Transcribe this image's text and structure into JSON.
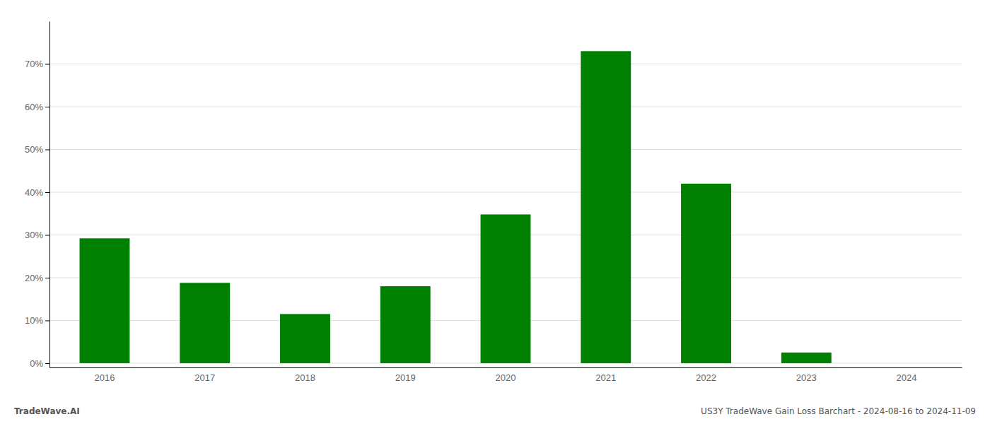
{
  "chart_data": {
    "type": "bar",
    "categories": [
      "2016",
      "2017",
      "2018",
      "2019",
      "2020",
      "2021",
      "2022",
      "2023",
      "2024"
    ],
    "values": [
      29.2,
      18.8,
      11.5,
      18.0,
      34.8,
      73.0,
      42.0,
      2.5,
      0.0
    ],
    "color": "#008000",
    "ylim": [
      -1,
      80
    ],
    "yticks": [
      {
        "value": 0,
        "label": "0%"
      },
      {
        "value": 10,
        "label": "10%"
      },
      {
        "value": 20,
        "label": "20%"
      },
      {
        "value": 30,
        "label": "30%"
      },
      {
        "value": 40,
        "label": "40%"
      },
      {
        "value": 50,
        "label": "50%"
      },
      {
        "value": 60,
        "label": "60%"
      },
      {
        "value": 70,
        "label": "70%"
      }
    ],
    "grid": true,
    "annotations": [
      "TradeWave.AI",
      "US3Y TradeWave Gain Loss Barchart - 2024-08-16 to 2024-11-09"
    ]
  }
}
